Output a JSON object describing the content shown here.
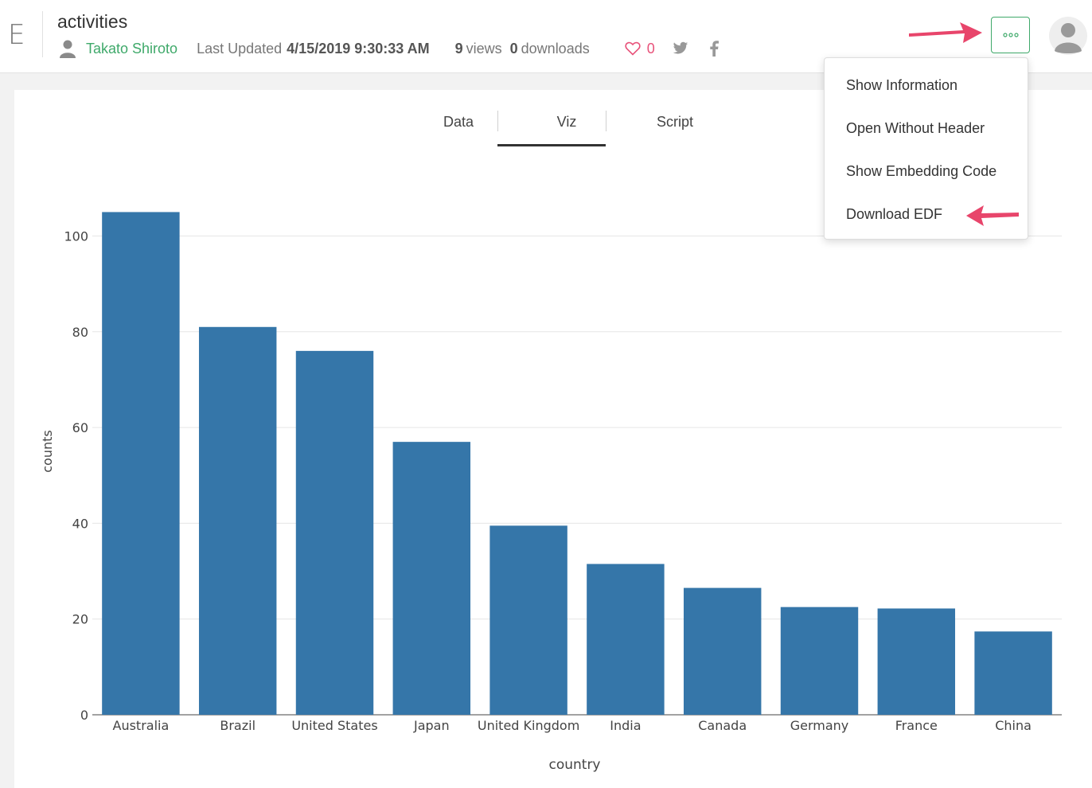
{
  "header": {
    "logo_letter": "E",
    "title": "activities",
    "author": "Takato Shiroto",
    "updated_label": "Last Updated",
    "updated_value": "4/15/2019 9:30:33 AM",
    "views_count": "9",
    "views_label": "views",
    "downloads_count": "0",
    "downloads_label": "downloads",
    "likes_count": "0",
    "more_icon": "ellipsis-icon",
    "accent_color": "#3fa96a",
    "like_color": "#e8527a",
    "annotation_arrow_color": "#e8456b"
  },
  "tabs": [
    {
      "label": "Data",
      "active": false
    },
    {
      "label": "Viz",
      "active": true
    },
    {
      "label": "Script",
      "active": false
    }
  ],
  "menu": {
    "items": [
      "Show Information",
      "Open Without Header",
      "Show Embedding Code",
      "Download EDF"
    ]
  },
  "chart_data": {
    "type": "bar",
    "categories": [
      "Australia",
      "Brazil",
      "United States",
      "Japan",
      "United Kingdom",
      "India",
      "Canada",
      "Germany",
      "France",
      "China"
    ],
    "values": [
      105,
      81,
      76,
      57,
      39.5,
      31.5,
      26.5,
      22.5,
      22.2,
      17.4
    ],
    "title": "",
    "xlabel": "country",
    "ylabel": "counts",
    "ylim": [
      0,
      105
    ],
    "yticks": [
      0,
      20,
      40,
      60,
      80,
      100
    ],
    "bar_color": "#3576a9",
    "grid": true,
    "legend": "none"
  }
}
